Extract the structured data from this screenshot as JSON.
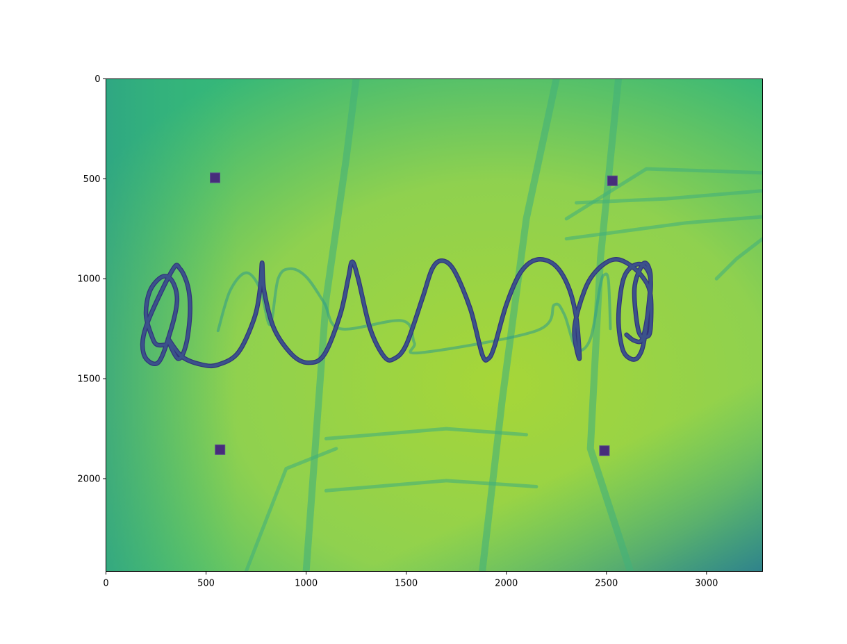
{
  "chart_data": {
    "type": "heatmap",
    "title": "",
    "xlabel": "",
    "ylabel": "",
    "xlim": [
      0,
      3280
    ],
    "ylim": [
      2464,
      0
    ],
    "xticks": [
      0,
      500,
      1000,
      1500,
      2000,
      2500,
      3000
    ],
    "yticks": [
      0,
      500,
      1000,
      1500,
      2000
    ],
    "colormap": "viridis",
    "colors": {
      "background_center": "#a6d638",
      "background_edge": "#35b779",
      "markers": "#472d7b",
      "spiral": "#3b528b",
      "spiral_shadow": "#2c9a8a",
      "structure": "#42b07a"
    },
    "grid": false,
    "legend": "none",
    "markers": [
      {
        "x": 545,
        "y": 495
      },
      {
        "x": 2530,
        "y": 510
      },
      {
        "x": 570,
        "y": 1855
      },
      {
        "x": 2490,
        "y": 1860
      }
    ],
    "spiral_path": [
      [
        300,
        1330
      ],
      [
        255,
        1330
      ],
      [
        230,
        1290
      ],
      [
        200,
        1180
      ],
      [
        220,
        1060
      ],
      [
        280,
        990
      ],
      [
        330,
        1010
      ],
      [
        355,
        1110
      ],
      [
        320,
        1270
      ],
      [
        260,
        1420
      ],
      [
        190,
        1380
      ],
      [
        200,
        1240
      ],
      [
        330,
        960
      ],
      [
        370,
        950
      ],
      [
        410,
        1040
      ],
      [
        420,
        1170
      ],
      [
        400,
        1330
      ],
      [
        360,
        1400
      ],
      [
        310,
        1300
      ],
      [
        380,
        1390
      ],
      [
        480,
        1430
      ],
      [
        560,
        1430
      ],
      [
        660,
        1370
      ],
      [
        740,
        1200
      ],
      [
        770,
        1050
      ],
      [
        780,
        920
      ],
      [
        790,
        1060
      ],
      [
        840,
        1250
      ],
      [
        930,
        1380
      ],
      [
        1010,
        1420
      ],
      [
        1090,
        1380
      ],
      [
        1170,
        1180
      ],
      [
        1210,
        1000
      ],
      [
        1230,
        915
      ],
      [
        1260,
        1000
      ],
      [
        1320,
        1250
      ],
      [
        1390,
        1390
      ],
      [
        1440,
        1400
      ],
      [
        1500,
        1330
      ],
      [
        1580,
        1100
      ],
      [
        1630,
        950
      ],
      [
        1680,
        910
      ],
      [
        1740,
        960
      ],
      [
        1820,
        1150
      ],
      [
        1880,
        1380
      ],
      [
        1910,
        1400
      ],
      [
        1940,
        1340
      ],
      [
        2000,
        1130
      ],
      [
        2070,
        970
      ],
      [
        2150,
        905
      ],
      [
        2240,
        930
      ],
      [
        2310,
        1040
      ],
      [
        2350,
        1200
      ],
      [
        2365,
        1400
      ],
      [
        2340,
        1250
      ],
      [
        2390,
        1060
      ],
      [
        2450,
        960
      ],
      [
        2530,
        905
      ],
      [
        2600,
        920
      ],
      [
        2680,
        990
      ],
      [
        2720,
        1080
      ],
      [
        2720,
        1250
      ],
      [
        2700,
        1290
      ],
      [
        2660,
        1260
      ],
      [
        2640,
        1050
      ],
      [
        2680,
        930
      ],
      [
        2710,
        940
      ],
      [
        2720,
        1030
      ],
      [
        2690,
        1300
      ],
      [
        2660,
        1390
      ],
      [
        2620,
        1400
      ],
      [
        2580,
        1350
      ],
      [
        2560,
        1200
      ],
      [
        2580,
        1020
      ],
      [
        2620,
        945
      ],
      [
        2680,
        930
      ],
      [
        2720,
        1000
      ],
      [
        2710,
        1150
      ],
      [
        2680,
        1300
      ],
      [
        2640,
        1310
      ],
      [
        2600,
        1280
      ]
    ],
    "spiral_shadow_path": [
      [
        560,
        1260
      ],
      [
        620,
        1060
      ],
      [
        700,
        970
      ],
      [
        770,
        1050
      ],
      [
        820,
        1230
      ],
      [
        860,
        1000
      ],
      [
        920,
        950
      ],
      [
        1000,
        990
      ],
      [
        1090,
        1120
      ],
      [
        1170,
        1250
      ],
      [
        1480,
        1210
      ],
      [
        1540,
        1320
      ],
      [
        1570,
        1370
      ],
      [
        2150,
        1260
      ],
      [
        2240,
        1130
      ],
      [
        2290,
        1180
      ],
      [
        2350,
        1350
      ],
      [
        2420,
        1300
      ],
      [
        2470,
        1030
      ],
      [
        2490,
        980
      ],
      [
        2510,
        1010
      ],
      [
        2520,
        1250
      ]
    ]
  }
}
